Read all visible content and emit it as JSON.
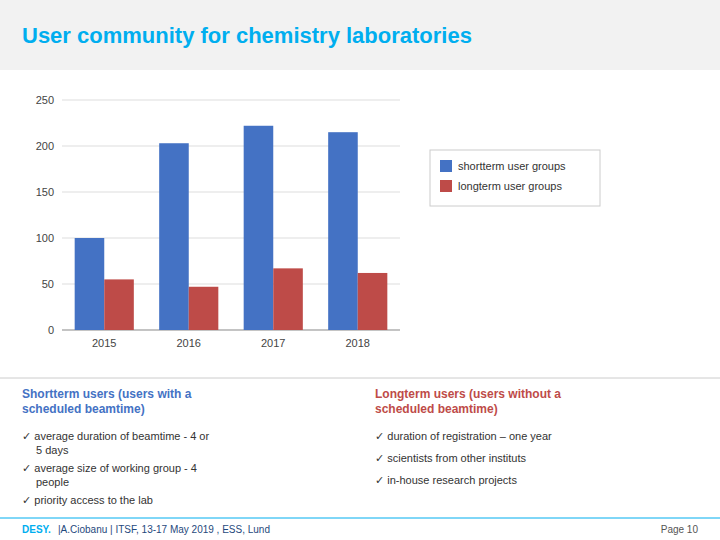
{
  "chart_data": {
    "type": "bar",
    "title": "User community for chemistry laboratories",
    "categories": [
      "2015",
      "2016",
      "2017",
      "2018"
    ],
    "series": [
      {
        "name": "shortterm user groups",
        "color": "#4472C4",
        "values": [
          100,
          203,
          222,
          215
        ]
      },
      {
        "name": "longterm user groups",
        "color": "#BE4B48",
        "values": [
          55,
          47,
          67,
          62
        ]
      }
    ],
    "ylim": [
      0,
      250
    ],
    "yticks": [
      0,
      50,
      100,
      150,
      200,
      250
    ],
    "grid": true,
    "legend": "right",
    "annotations": [
      "Shortterm users (users with a\nscheduled beamtime)",
      "✓ average duration of beamtime - 4 or\n5 days",
      "✓ average size of working group - 4\npeople",
      "✓ priority access to the lab",
      "Longterm users (users without a\nscheduled beamtime)",
      "✓ duration of registration – one year",
      "✓ scientists from other instituts",
      "✓ in-house research projects",
      "DESY.",
      "|A.Ciobanu | ITSF, 13-17 May 2019 , ESS, Lund",
      "Page 10"
    ]
  }
}
